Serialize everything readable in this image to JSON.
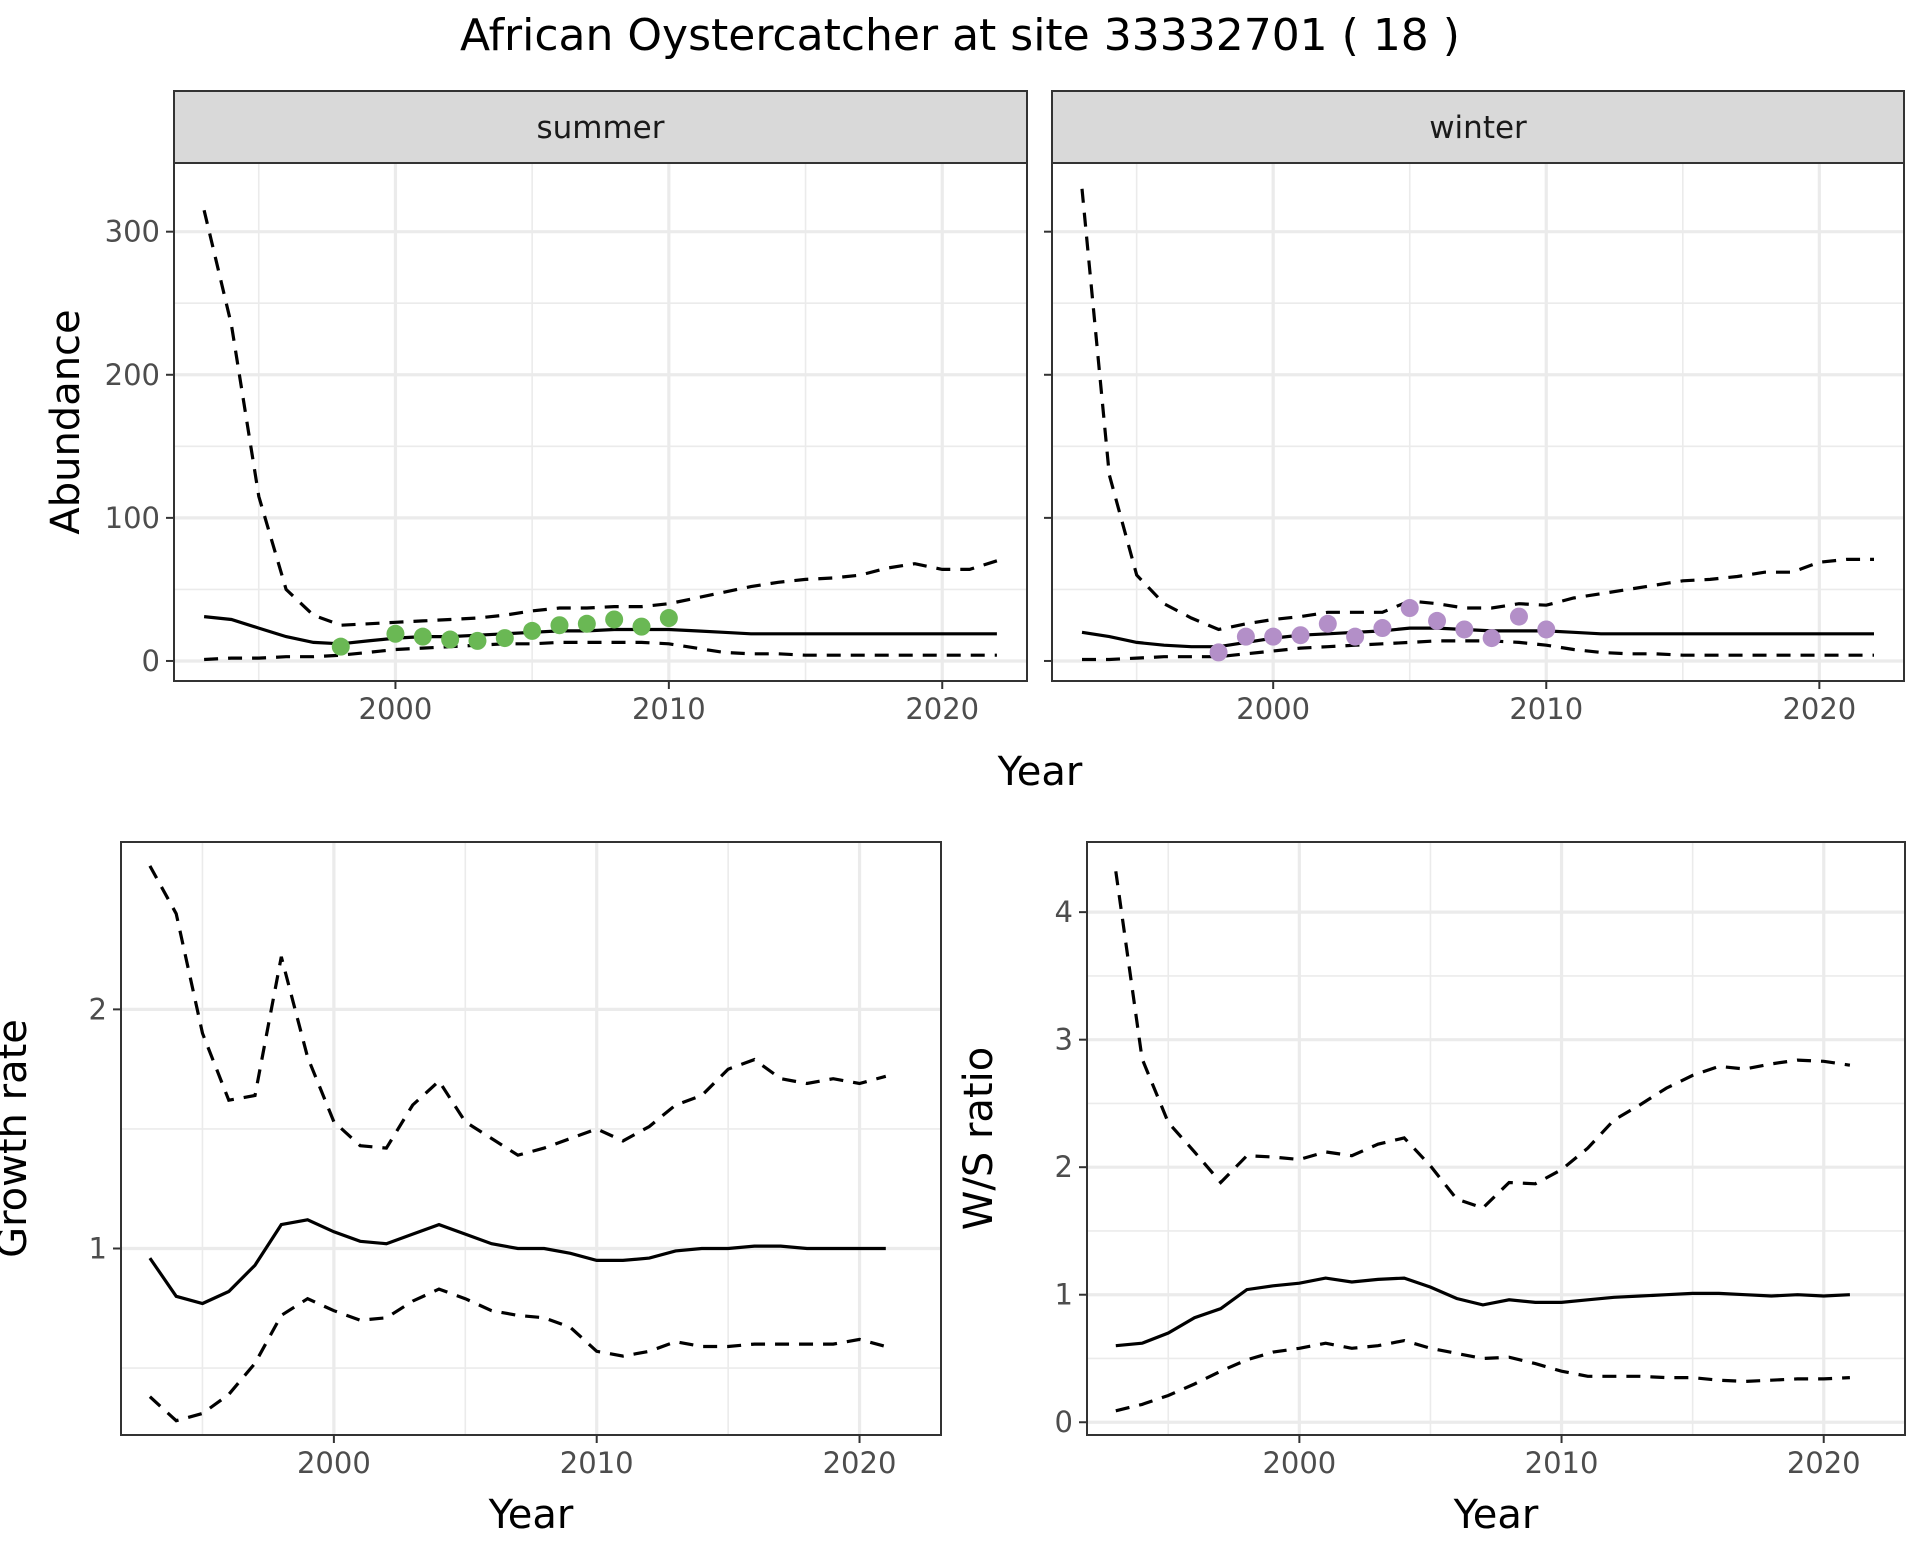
{
  "figure": {
    "title": "African Oystercatcher at site 33332701 ( 18 )",
    "colors": {
      "summer_points": "#6ab854",
      "winter_points": "#b38fc8",
      "line": "#000000",
      "strip": "#d9d9d9"
    }
  },
  "chart_data": [
    {
      "id": "abundance-summer",
      "type": "line",
      "facet": "summer",
      "xlabel": "Year",
      "ylabel": "Abundance",
      "xlim": [
        1991.9,
        2023.1
      ],
      "ylim": [
        -14,
        348
      ],
      "xticks": [
        2000,
        2010,
        2020
      ],
      "yticks": [
        0,
        100,
        200,
        300
      ],
      "xminor": [
        1995,
        2005,
        2015
      ],
      "yminor": [
        50,
        150,
        250
      ],
      "series": [
        {
          "role": "estimate",
          "style": "solid",
          "x": [
            1993,
            1994,
            1995,
            1996,
            1997,
            1998,
            1999,
            2000,
            2001,
            2002,
            2003,
            2004,
            2005,
            2006,
            2007,
            2008,
            2009,
            2010,
            2011,
            2012,
            2013,
            2014,
            2015,
            2016,
            2017,
            2018,
            2019,
            2020,
            2021,
            2022
          ],
          "y": [
            31,
            29,
            23,
            17,
            13,
            12,
            14,
            16,
            17,
            17,
            18,
            19,
            20,
            21,
            21,
            22,
            22,
            22,
            21,
            20,
            19,
            19,
            19,
            19,
            19,
            19,
            19,
            19,
            19,
            19
          ]
        },
        {
          "role": "upper",
          "style": "dashed",
          "x": [
            1993,
            1994,
            1995,
            1996,
            1997,
            1998,
            1999,
            2000,
            2001,
            2002,
            2003,
            2004,
            2005,
            2006,
            2007,
            2008,
            2009,
            2010,
            2011,
            2012,
            2013,
            2014,
            2015,
            2016,
            2017,
            2018,
            2019,
            2020,
            2021,
            2022
          ],
          "y": [
            315,
            235,
            115,
            50,
            32,
            25,
            26,
            27,
            28,
            29,
            30,
            32,
            35,
            37,
            37,
            38,
            38,
            40,
            44,
            48,
            52,
            55,
            57,
            58,
            60,
            65,
            68,
            64,
            64,
            70
          ]
        },
        {
          "role": "lower",
          "style": "dashed",
          "x": [
            1993,
            1994,
            1995,
            1996,
            1997,
            1998,
            1999,
            2000,
            2001,
            2002,
            2003,
            2004,
            2005,
            2006,
            2007,
            2008,
            2009,
            2010,
            2011,
            2012,
            2013,
            2014,
            2015,
            2016,
            2017,
            2018,
            2019,
            2020,
            2021,
            2022
          ],
          "y": [
            1,
            2,
            2,
            3,
            3,
            4,
            6,
            8,
            9,
            10,
            11,
            12,
            12,
            13,
            13,
            13,
            13,
            12,
            9,
            6,
            5,
            5,
            4,
            4,
            4,
            4,
            4,
            4,
            4,
            4
          ]
        },
        {
          "role": "counts",
          "style": "points",
          "x": [
            1998,
            2000,
            2001,
            2002,
            2003,
            2004,
            2005,
            2006,
            2007,
            2008,
            2009,
            2010
          ],
          "y": [
            10,
            19,
            17,
            15,
            14,
            16,
            21,
            25,
            26,
            29,
            24,
            30
          ]
        }
      ]
    },
    {
      "id": "abundance-winter",
      "type": "line",
      "facet": "winter",
      "xlabel": "Year",
      "ylabel": "Abundance",
      "xlim": [
        1991.9,
        2023.1
      ],
      "ylim": [
        -14,
        348
      ],
      "xticks": [
        2000,
        2010,
        2020
      ],
      "yticks": [
        0,
        100,
        200,
        300
      ],
      "xminor": [
        1995,
        2005,
        2015
      ],
      "yminor": [
        50,
        150,
        250
      ],
      "series": [
        {
          "role": "estimate",
          "style": "solid",
          "x": [
            1993,
            1994,
            1995,
            1996,
            1997,
            1998,
            1999,
            2000,
            2001,
            2002,
            2003,
            2004,
            2005,
            2006,
            2007,
            2008,
            2009,
            2010,
            2011,
            2012,
            2013,
            2014,
            2015,
            2016,
            2017,
            2018,
            2019,
            2020,
            2021,
            2022
          ],
          "y": [
            20,
            17,
            13,
            11,
            10,
            10,
            13,
            16,
            18,
            19,
            20,
            21,
            23,
            23,
            22,
            21,
            21,
            21,
            20,
            19,
            19,
            19,
            19,
            19,
            19,
            19,
            19,
            19,
            19,
            19
          ]
        },
        {
          "role": "upper",
          "style": "dashed",
          "x": [
            1993,
            1994,
            1995,
            1996,
            1997,
            1998,
            1999,
            2000,
            2001,
            2002,
            2003,
            2004,
            2005,
            2006,
            2007,
            2008,
            2009,
            2010,
            2011,
            2012,
            2013,
            2014,
            2015,
            2016,
            2017,
            2018,
            2019,
            2020,
            2021,
            2022
          ],
          "y": [
            330,
            130,
            60,
            40,
            30,
            22,
            26,
            29,
            31,
            34,
            34,
            34,
            42,
            40,
            37,
            37,
            40,
            39,
            44,
            47,
            50,
            53,
            56,
            57,
            59,
            62,
            62,
            69,
            71,
            71
          ]
        },
        {
          "role": "lower",
          "style": "dashed",
          "x": [
            1993,
            1994,
            1995,
            1996,
            1997,
            1998,
            1999,
            2000,
            2001,
            2002,
            2003,
            2004,
            2005,
            2006,
            2007,
            2008,
            2009,
            2010,
            2011,
            2012,
            2013,
            2014,
            2015,
            2016,
            2017,
            2018,
            2019,
            2020,
            2021,
            2022
          ],
          "y": [
            1,
            1,
            2,
            3,
            3,
            3,
            5,
            7,
            9,
            10,
            11,
            12,
            13,
            14,
            14,
            14,
            13,
            11,
            8,
            6,
            5,
            5,
            4,
            4,
            4,
            4,
            4,
            4,
            4,
            4
          ]
        },
        {
          "role": "counts",
          "style": "points",
          "x": [
            1998,
            1999,
            2000,
            2001,
            2002,
            2003,
            2004,
            2005,
            2006,
            2007,
            2008,
            2009,
            2010
          ],
          "y": [
            6,
            17,
            17,
            18,
            26,
            17,
            23,
            37,
            28,
            22,
            16,
            31,
            22
          ]
        }
      ]
    },
    {
      "id": "growth-rate",
      "type": "line",
      "xlabel": "Year",
      "ylabel": "Growth rate",
      "xlim": [
        1991.9,
        2023.1
      ],
      "ylim": [
        0.22,
        2.7
      ],
      "xticks": [
        2000,
        2010,
        2020
      ],
      "yticks": [
        1,
        2
      ],
      "xminor": [
        1995,
        2005,
        2015
      ],
      "yminor": [
        0.5,
        1.5
      ],
      "series": [
        {
          "role": "estimate",
          "style": "solid",
          "x": [
            1993,
            1994,
            1995,
            1996,
            1997,
            1998,
            1999,
            2000,
            2001,
            2002,
            2003,
            2004,
            2005,
            2006,
            2007,
            2008,
            2009,
            2010,
            2011,
            2012,
            2013,
            2014,
            2015,
            2016,
            2017,
            2018,
            2019,
            2020,
            2021
          ],
          "y": [
            0.96,
            0.8,
            0.77,
            0.82,
            0.93,
            1.1,
            1.12,
            1.07,
            1.03,
            1.02,
            1.06,
            1.1,
            1.06,
            1.02,
            1.0,
            1.0,
            0.98,
            0.95,
            0.95,
            0.96,
            0.99,
            1.0,
            1.0,
            1.01,
            1.01,
            1.0,
            1.0,
            1.0,
            1.0
          ]
        },
        {
          "role": "upper",
          "style": "dashed",
          "x": [
            1993,
            1994,
            1995,
            1996,
            1997,
            1998,
            1999,
            2000,
            2001,
            2002,
            2003,
            2004,
            2005,
            2006,
            2007,
            2008,
            2009,
            2010,
            2011,
            2012,
            2013,
            2014,
            2015,
            2016,
            2017,
            2018,
            2019,
            2020,
            2021
          ],
          "y": [
            2.6,
            2.4,
            1.9,
            1.62,
            1.64,
            2.22,
            1.8,
            1.53,
            1.43,
            1.42,
            1.6,
            1.7,
            1.53,
            1.46,
            1.39,
            1.42,
            1.46,
            1.5,
            1.45,
            1.51,
            1.6,
            1.64,
            1.75,
            1.79,
            1.71,
            1.69,
            1.71,
            1.69,
            1.72
          ]
        },
        {
          "role": "lower",
          "style": "dashed",
          "x": [
            1993,
            1994,
            1995,
            1996,
            1997,
            1998,
            1999,
            2000,
            2001,
            2002,
            2003,
            2004,
            2005,
            2006,
            2007,
            2008,
            2009,
            2010,
            2011,
            2012,
            2013,
            2014,
            2015,
            2016,
            2017,
            2018,
            2019,
            2020,
            2021
          ],
          "y": [
            0.38,
            0.28,
            0.31,
            0.39,
            0.52,
            0.72,
            0.79,
            0.74,
            0.7,
            0.71,
            0.78,
            0.83,
            0.79,
            0.74,
            0.72,
            0.71,
            0.67,
            0.57,
            0.55,
            0.57,
            0.61,
            0.59,
            0.59,
            0.6,
            0.6,
            0.6,
            0.6,
            0.62,
            0.59
          ]
        }
      ]
    },
    {
      "id": "ws-ratio",
      "type": "line",
      "xlabel": "Year",
      "ylabel": "W/S ratio",
      "xlim": [
        1991.9,
        2023.1
      ],
      "ylim": [
        -0.1,
        4.55
      ],
      "xticks": [
        2000,
        2010,
        2020
      ],
      "yticks": [
        0,
        1,
        2,
        3,
        4
      ],
      "xminor": [
        1995,
        2005,
        2015
      ],
      "yminor": [
        0.5,
        1.5,
        2.5,
        3.5
      ],
      "series": [
        {
          "role": "estimate",
          "style": "solid",
          "x": [
            1993,
            1994,
            1995,
            1996,
            1997,
            1998,
            1999,
            2000,
            2001,
            2002,
            2003,
            2004,
            2005,
            2006,
            2007,
            2008,
            2009,
            2010,
            2011,
            2012,
            2013,
            2014,
            2015,
            2016,
            2017,
            2018,
            2019,
            2020,
            2021
          ],
          "y": [
            0.6,
            0.62,
            0.7,
            0.82,
            0.89,
            1.04,
            1.07,
            1.09,
            1.13,
            1.1,
            1.12,
            1.13,
            1.06,
            0.97,
            0.92,
            0.96,
            0.94,
            0.94,
            0.96,
            0.98,
            0.99,
            1.0,
            1.01,
            1.01,
            1.0,
            0.99,
            1.0,
            0.99,
            1.0
          ]
        },
        {
          "role": "upper",
          "style": "dashed",
          "x": [
            1993,
            1994,
            1995,
            1996,
            1997,
            1998,
            1999,
            2000,
            2001,
            2002,
            2003,
            2004,
            2005,
            2006,
            2007,
            2008,
            2009,
            2010,
            2011,
            2012,
            2013,
            2014,
            2015,
            2016,
            2017,
            2018,
            2019,
            2020,
            2021
          ],
          "y": [
            4.32,
            2.85,
            2.35,
            2.12,
            1.88,
            2.09,
            2.08,
            2.06,
            2.12,
            2.09,
            2.18,
            2.23,
            2.01,
            1.75,
            1.68,
            1.88,
            1.87,
            1.98,
            2.15,
            2.37,
            2.49,
            2.62,
            2.72,
            2.79,
            2.77,
            2.81,
            2.84,
            2.83,
            2.8
          ]
        },
        {
          "role": "lower",
          "style": "dashed",
          "x": [
            1993,
            1994,
            1995,
            1996,
            1997,
            1998,
            1999,
            2000,
            2001,
            2002,
            2003,
            2004,
            2005,
            2006,
            2007,
            2008,
            2009,
            2010,
            2011,
            2012,
            2013,
            2014,
            2015,
            2016,
            2017,
            2018,
            2019,
            2020,
            2021
          ],
          "y": [
            0.09,
            0.14,
            0.21,
            0.3,
            0.4,
            0.49,
            0.55,
            0.58,
            0.62,
            0.58,
            0.6,
            0.64,
            0.58,
            0.54,
            0.5,
            0.51,
            0.46,
            0.4,
            0.36,
            0.36,
            0.36,
            0.35,
            0.35,
            0.33,
            0.32,
            0.33,
            0.34,
            0.34,
            0.35
          ]
        }
      ]
    }
  ]
}
